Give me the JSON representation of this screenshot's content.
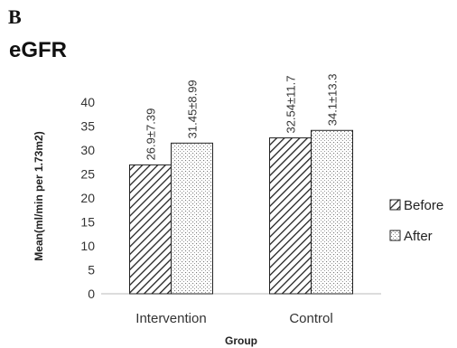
{
  "panel_letter": "B",
  "chart_data": {
    "type": "bar",
    "title": "eGFR",
    "categories": [
      "Intervention",
      "Control"
    ],
    "series": [
      {
        "name": "Before",
        "values": [
          26.9,
          32.54
        ],
        "labels": [
          "26.9±7.39",
          "32.54±11.7"
        ],
        "pattern": "diagonal-hatch"
      },
      {
        "name": "After",
        "values": [
          31.45,
          34.1
        ],
        "labels": [
          "31.45±8.99",
          "34.1±13.3"
        ],
        "pattern": "dotted"
      }
    ],
    "xlabel": "Group",
    "ylabel": "Mean(ml/min per 1.73m2)",
    "ylim": [
      0,
      40
    ],
    "yticks": [
      0,
      5,
      10,
      15,
      20,
      25,
      30,
      35,
      40
    ],
    "grid": false,
    "legend_position": "right"
  }
}
